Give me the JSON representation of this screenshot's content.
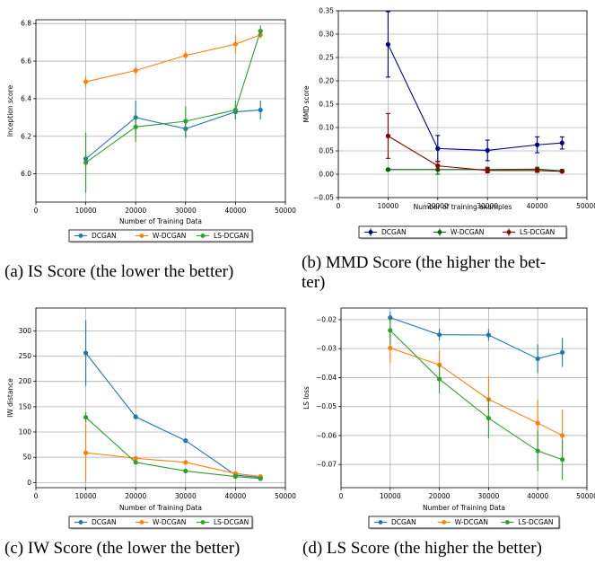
{
  "panels": [
    {
      "caption": "(a) IS Score (the lower the better)",
      "chart_data": {
        "type": "line",
        "title": "",
        "xlabel": "Number of Training Data",
        "ylabel": "Inception score",
        "xlim": [
          0,
          50000
        ],
        "ylim": [
          5.85,
          6.82
        ],
        "xticks": [
          0,
          10000,
          20000,
          30000,
          40000,
          50000
        ],
        "xtick_labels": [
          "0",
          "10000",
          "20000",
          "30000",
          "40000",
          "50000"
        ],
        "yticks": [
          6.0,
          6.2,
          6.4,
          6.6,
          6.8
        ],
        "ytick_labels": [
          "6.0",
          "6.2",
          "6.4",
          "6.6",
          "6.8"
        ],
        "grid": true,
        "legend_position": "below",
        "marker": "dot",
        "x": [
          10000,
          20000,
          30000,
          40000,
          45000
        ],
        "series": [
          {
            "name": "DCGAN",
            "color": "#1f77b4",
            "values": [
              6.08,
              6.3,
              6.24,
              6.33,
              6.34
            ],
            "err": [
              0.04,
              0.09,
              0.05,
              0.04,
              0.05
            ]
          },
          {
            "name": "W-DCGAN",
            "color": "#ff7f0e",
            "values": [
              6.49,
              6.55,
              6.63,
              6.69,
              6.74
            ],
            "err": [
              0.03,
              0.02,
              0.02,
              0.05,
              0.02
            ]
          },
          {
            "name": "LS-DCGAN",
            "color": "#2ca02c",
            "values": [
              6.06,
              6.25,
              6.28,
              6.34,
              6.76
            ],
            "err": [
              0.16,
              0.08,
              0.08,
              0.05,
              0.03
            ]
          }
        ]
      }
    },
    {
      "caption": "(b) MMD Score (the higher the better)",
      "caption_lines": [
        "(b) MMD Score (the higher the bet-",
        "ter)"
      ],
      "chart_data": {
        "type": "line",
        "title": "",
        "xlabel": "Number of training examples",
        "ylabel": "MMD score",
        "xlim": [
          0,
          50000
        ],
        "ylim": [
          -0.05,
          0.35
        ],
        "xticks": [
          0,
          10000,
          20000,
          30000,
          40000,
          50000
        ],
        "xtick_labels": [
          "0",
          "10000",
          "20000",
          "30000",
          "40000",
          "50000"
        ],
        "yticks": [
          -0.05,
          0.0,
          0.05,
          0.1,
          0.15,
          0.2,
          0.25,
          0.3,
          0.35
        ],
        "ytick_labels": [
          "−0.05",
          "0.00",
          "0.05",
          "0.10",
          "0.15",
          "0.20",
          "0.25",
          "0.30",
          "0.35"
        ],
        "grid": true,
        "legend_position": "below",
        "marker": "dot-cap",
        "x": [
          10000,
          20000,
          30000,
          40000,
          45000
        ],
        "series": [
          {
            "name": "DCGAN",
            "color": "#00008b",
            "values": [
              0.278,
              0.055,
              0.051,
              0.063,
              0.067
            ],
            "err": [
              0.07,
              0.028,
              0.022,
              0.017,
              0.013
            ]
          },
          {
            "name": "W-DCGAN",
            "color": "#006400",
            "values": [
              0.01,
              0.01,
              0.01,
              0.011,
              0.007
            ],
            "err": [
              0.002,
              0.01,
              0.005,
              0.004,
              0.003
            ]
          },
          {
            "name": "LS-DCGAN",
            "color": "#8b0000",
            "values": [
              0.082,
              0.018,
              0.008,
              0.008,
              0.006
            ],
            "err": [
              0.048,
              0.01,
              0.005,
              0.004,
              0.002
            ]
          }
        ]
      }
    },
    {
      "caption": "(c) IW Score (the lower the better)",
      "chart_data": {
        "type": "line",
        "title": "",
        "xlabel": "Number of Training Data",
        "ylabel": "IW distance",
        "xlim": [
          0,
          50000
        ],
        "ylim": [
          -10,
          345
        ],
        "xticks": [
          0,
          10000,
          20000,
          30000,
          40000,
          50000
        ],
        "xtick_labels": [
          "0",
          "10000",
          "20000",
          "30000",
          "40000",
          "50000"
        ],
        "yticks": [
          0,
          50,
          100,
          150,
          200,
          250,
          300
        ],
        "ytick_labels": [
          "0",
          "50",
          "100",
          "150",
          "200",
          "250",
          "300"
        ],
        "grid": true,
        "legend_position": "below",
        "marker": "dot",
        "x": [
          10000,
          20000,
          30000,
          40000,
          45000
        ],
        "series": [
          {
            "name": "DCGAN",
            "color": "#1f77b4",
            "values": [
              256,
              130,
              83,
              15,
              10
            ],
            "err": [
              65,
              5,
              3,
              4,
              3
            ]
          },
          {
            "name": "W-DCGAN",
            "color": "#ff7f0e",
            "values": [
              59,
              48,
              40,
              18,
              12
            ],
            "err": [
              58,
              4,
              3,
              3,
              3
            ]
          },
          {
            "name": "LS-DCGAN",
            "color": "#2ca02c",
            "values": [
              129,
              40,
              23,
              12,
              8
            ],
            "err": [
              10,
              4,
              3,
              3,
              2
            ]
          }
        ]
      }
    },
    {
      "caption": "(d) LS Score (the higher the better)",
      "chart_data": {
        "type": "line",
        "title": "",
        "xlabel": "Number of Training Data",
        "ylabel": "LS loss",
        "xlim": [
          0,
          50000
        ],
        "ylim": [
          -0.078,
          -0.016
        ],
        "xticks": [
          0,
          10000,
          20000,
          30000,
          40000,
          50000
        ],
        "xtick_labels": [
          "0",
          "10000",
          "20000",
          "30000",
          "40000",
          "50000"
        ],
        "yticks": [
          -0.02,
          -0.03,
          -0.04,
          -0.05,
          -0.06,
          -0.07
        ],
        "ytick_labels": [
          "−0.02",
          "−0.03",
          "−0.04",
          "−0.05",
          "−0.06",
          "−0.07"
        ],
        "grid": true,
        "legend_position": "below",
        "marker": "dot",
        "x": [
          10000,
          20000,
          30000,
          40000,
          45000
        ],
        "series": [
          {
            "name": "DCGAN",
            "color": "#1f77b4",
            "values": [
              -0.0193,
              -0.0252,
              -0.0253,
              -0.0335,
              -0.0313
            ],
            "err": [
              0.002,
              0.002,
              0.002,
              0.005,
              0.005
            ]
          },
          {
            "name": "W-DCGAN",
            "color": "#ff7f0e",
            "values": [
              -0.0298,
              -0.0356,
              -0.0475,
              -0.0557,
              -0.06
            ],
            "err": [
              0.005,
              0.005,
              0.008,
              0.008,
              0.009
            ]
          },
          {
            "name": "LS-DCGAN",
            "color": "#2ca02c",
            "values": [
              -0.0237,
              -0.0405,
              -0.054,
              -0.0653,
              -0.0683
            ],
            "err": [
              0.005,
              0.005,
              0.007,
              0.007,
              0.007
            ]
          }
        ]
      }
    }
  ]
}
